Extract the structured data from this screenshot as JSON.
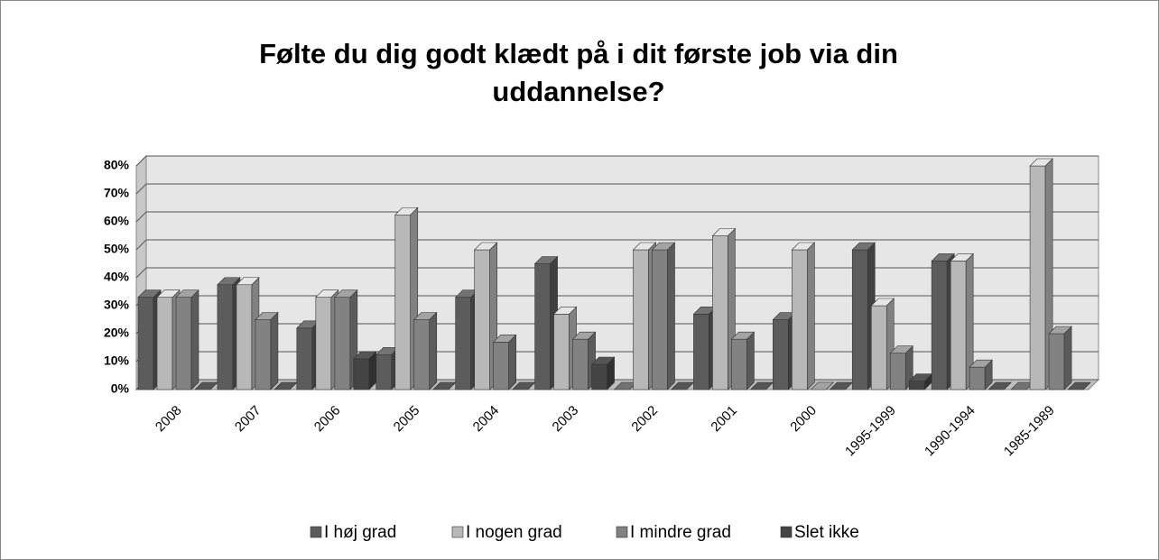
{
  "chart_data": {
    "type": "bar3d",
    "title": "Følte du dig godt klædt på i dit første job via din uddannelse?",
    "categories": [
      "2008",
      "2007",
      "2006",
      "2005",
      "2004",
      "2003",
      "2002",
      "2001",
      "2000",
      "1995-1999",
      "1990-1994",
      "1985-1989"
    ],
    "series": [
      {
        "name": "I høj grad",
        "color": "#5c5c5c",
        "values": [
          33,
          37.5,
          22,
          12.5,
          33,
          45,
          0,
          27,
          25,
          50,
          46,
          0
        ]
      },
      {
        "name": "I nogen grad",
        "color": "#b8b8b8",
        "values": [
          33,
          37.5,
          33,
          62.5,
          50,
          27,
          50,
          55,
          50,
          30,
          46,
          80
        ]
      },
      {
        "name": "I mindre grad",
        "color": "#828282",
        "values": [
          33,
          25,
          33,
          25,
          17,
          18,
          50,
          18,
          0,
          13,
          8,
          20
        ]
      },
      {
        "name": "Slet ikke",
        "color": "#444444",
        "values": [
          0,
          0,
          11,
          0,
          0,
          9,
          0,
          0,
          0,
          3,
          0,
          0
        ]
      }
    ],
    "ylim": [
      0,
      80
    ],
    "yticks": [
      {
        "value": 0,
        "label": "0%"
      },
      {
        "value": 10,
        "label": "10%"
      },
      {
        "value": 20,
        "label": "20%"
      },
      {
        "value": 30,
        "label": "30%"
      },
      {
        "value": 40,
        "label": "40%"
      },
      {
        "value": 50,
        "label": "50%"
      },
      {
        "value": 60,
        "label": "60%"
      },
      {
        "value": 70,
        "label": "70%"
      },
      {
        "value": 80,
        "label": "80%"
      }
    ],
    "grid": true,
    "legend": "bottom"
  }
}
